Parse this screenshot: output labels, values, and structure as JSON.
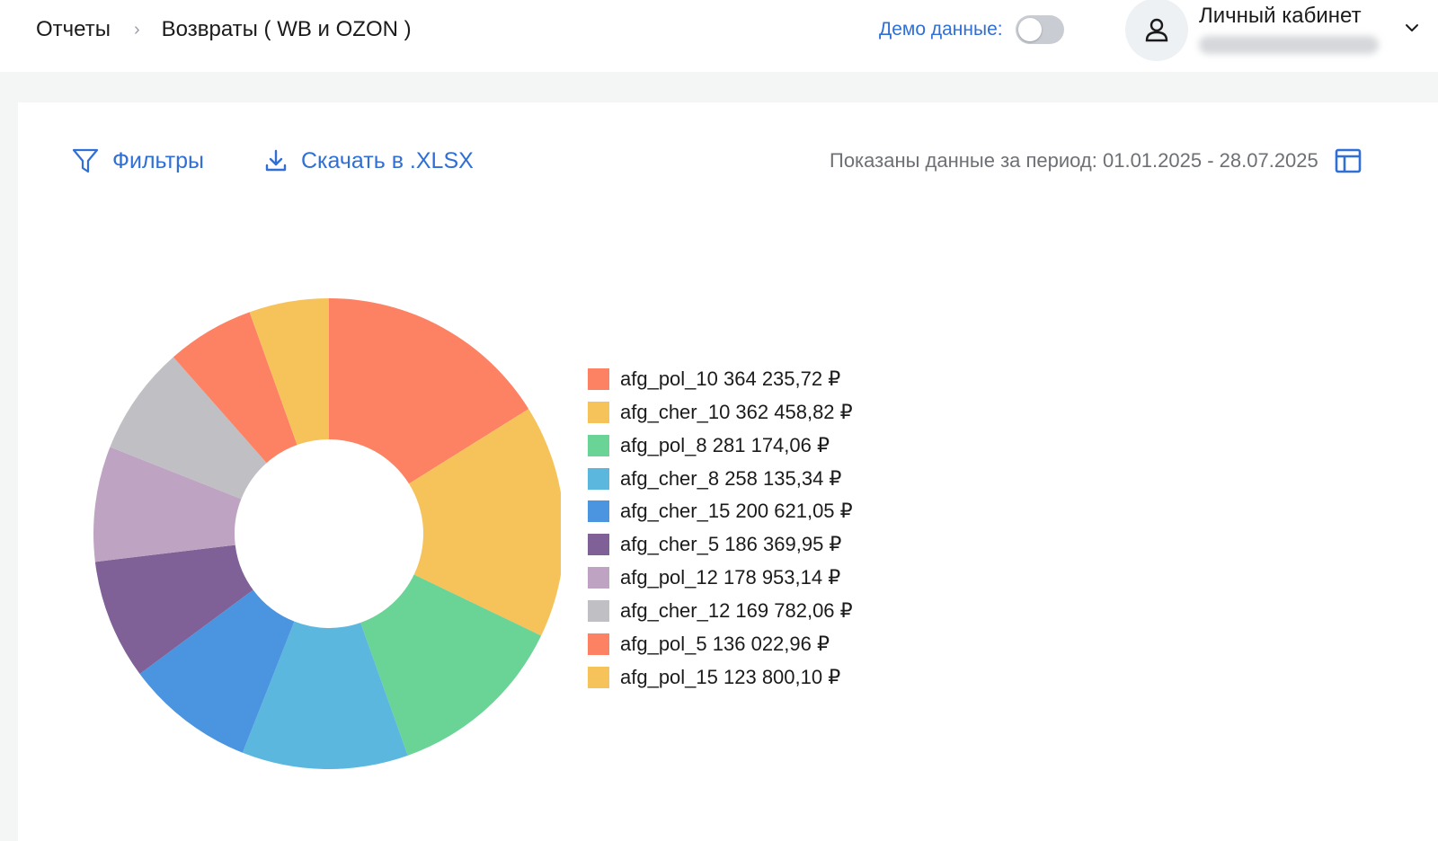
{
  "header": {
    "breadcrumb": [
      {
        "label": "Отчеты"
      },
      {
        "label": "Возвраты ( WB и OZON )"
      }
    ],
    "breadcrumb_separator": "›",
    "demo_label": "Демо данные:",
    "demo_enabled": false,
    "account_title": "Личный кабинет",
    "icons": {
      "avatar": "user-icon",
      "chevron": "chevron-down-icon"
    }
  },
  "toolbar": {
    "filters_label": "Фильтры",
    "download_label": "Скачать в .XLSX",
    "period_text": "Показаны данные за период: 01.01.2025 - 28.07.2025",
    "icons": {
      "filters": "filter-icon",
      "download": "download-icon",
      "period": "calendar-layout-icon"
    }
  },
  "chart_data": {
    "type": "pie",
    "donut": true,
    "legend_position": "right",
    "categories": [
      "afg_pol_10",
      "afg_cher_10",
      "afg_pol_8",
      "afg_cher_8",
      "afg_cher_15",
      "afg_cher_5",
      "afg_pol_12",
      "afg_cher_12",
      "afg_pol_5",
      "afg_pol_15"
    ],
    "values": [
      364235.72,
      362458.82,
      281174.06,
      258135.34,
      200621.05,
      186369.95,
      178953.14,
      169782.06,
      136022.96,
      123800.1
    ],
    "value_labels": [
      "364 235,72 ₽",
      "362 458,82 ₽",
      "281 174,06 ₽",
      "258 135,34 ₽",
      "200 621,05 ₽",
      "186 369,95 ₽",
      "178 953,14 ₽",
      "169 782,06 ₽",
      "136 022,96 ₽",
      "123 800,10 ₽"
    ],
    "colors": [
      "#fd8263",
      "#f6c25a",
      "#6ad396",
      "#5bb7de",
      "#4b95e0",
      "#7f6198",
      "#bea4c2",
      "#c0bfc4",
      "#fd8263",
      "#f6c25a"
    ]
  }
}
